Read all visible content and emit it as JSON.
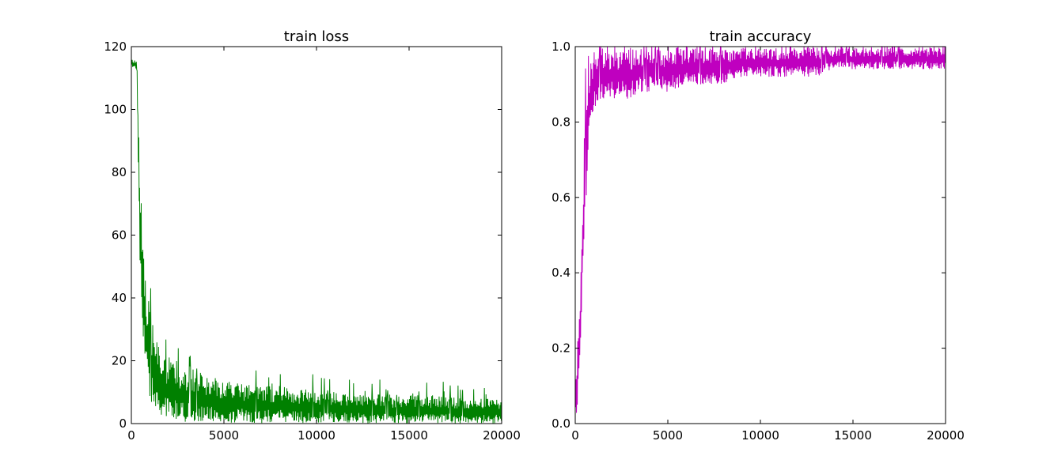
{
  "chart_data": [
    {
      "type": "line",
      "title": "train loss",
      "xlabel": "",
      "ylabel": "",
      "xlim": [
        0,
        20000
      ],
      "ylim": [
        0,
        120
      ],
      "xticks": [
        0,
        5000,
        10000,
        15000,
        20000
      ],
      "xtick_labels": [
        "0",
        "5000",
        "10000",
        "15000",
        "20000"
      ],
      "yticks": [
        0,
        20,
        40,
        60,
        80,
        100,
        120
      ],
      "ytick_labels": [
        "0",
        "20",
        "40",
        "60",
        "80",
        "100",
        "120"
      ],
      "grid": false,
      "series": [
        {
          "color": "#008000",
          "x": [
            0,
            100,
            200,
            300,
            400,
            500,
            600,
            700,
            800,
            900,
            1000,
            1200,
            1400,
            1600,
            1800,
            2000,
            2500,
            3000,
            3500,
            4000,
            5000,
            6000,
            7000,
            8000,
            9000,
            10000,
            11000,
            12000,
            13000,
            14000,
            15000,
            16000,
            17000,
            18000,
            19000,
            20000
          ],
          "y_upper": [
            116,
            116,
            116,
            115,
            95,
            75,
            67,
            55,
            45,
            40,
            37,
            30,
            26,
            23,
            22,
            22,
            20,
            18,
            17,
            15,
            14,
            13,
            12,
            12,
            11,
            11,
            10,
            10,
            10,
            9,
            9,
            9,
            9,
            8,
            8,
            8
          ],
          "y_lower": [
            114,
            113,
            113,
            112,
            72,
            40,
            30,
            24,
            18,
            12,
            8,
            5,
            3,
            2,
            1.5,
            1,
            1,
            0.5,
            0.5,
            0.5,
            0.3,
            0.3,
            0.2,
            0.2,
            0.2,
            0.1,
            0.1,
            0.1,
            0.1,
            0.1,
            0.1,
            0.1,
            0.1,
            0.1,
            0.1,
            0.1
          ]
        }
      ]
    },
    {
      "type": "line",
      "title": "train accuracy",
      "xlabel": "",
      "ylabel": "",
      "xlim": [
        0,
        20000
      ],
      "ylim": [
        0,
        1.0
      ],
      "xticks": [
        0,
        5000,
        10000,
        15000,
        20000
      ],
      "xtick_labels": [
        "0",
        "5000",
        "10000",
        "15000",
        "20000"
      ],
      "yticks": [
        0,
        0.2,
        0.4,
        0.6,
        0.8,
        1.0
      ],
      "ytick_labels": [
        "0.0",
        "0.2",
        "0.4",
        "0.6",
        "0.8",
        "1.0"
      ],
      "grid": false,
      "series": [
        {
          "color": "#bf00bf",
          "x": [
            0,
            100,
            200,
            300,
            400,
            500,
            600,
            700,
            800,
            900,
            1000,
            1200,
            1400,
            1600,
            1800,
            2000,
            2500,
            3000,
            3500,
            4000,
            5000,
            6000,
            7000,
            8000,
            9000,
            10000,
            11000,
            12000,
            13000,
            14000,
            15000,
            16000,
            17000,
            18000,
            19000,
            20000
          ],
          "y_upper": [
            0.05,
            0.22,
            0.28,
            0.4,
            0.6,
            0.78,
            0.86,
            0.9,
            0.94,
            0.98,
            1.0,
            1.0,
            1.0,
            1.0,
            1.0,
            1.0,
            1.0,
            1.0,
            1.0,
            1.0,
            1.0,
            1.0,
            1.0,
            1.0,
            1.0,
            1.0,
            1.0,
            1.0,
            1.0,
            1.0,
            1.0,
            1.0,
            1.0,
            1.0,
            1.0,
            1.0
          ],
          "y_lower": [
            0.02,
            0.03,
            0.08,
            0.2,
            0.38,
            0.45,
            0.6,
            0.7,
            0.78,
            0.8,
            0.82,
            0.84,
            0.86,
            0.86,
            0.86,
            0.86,
            0.86,
            0.86,
            0.88,
            0.88,
            0.88,
            0.9,
            0.9,
            0.9,
            0.92,
            0.92,
            0.92,
            0.92,
            0.92,
            0.94,
            0.94,
            0.94,
            0.94,
            0.94,
            0.94,
            0.94
          ]
        }
      ]
    }
  ]
}
